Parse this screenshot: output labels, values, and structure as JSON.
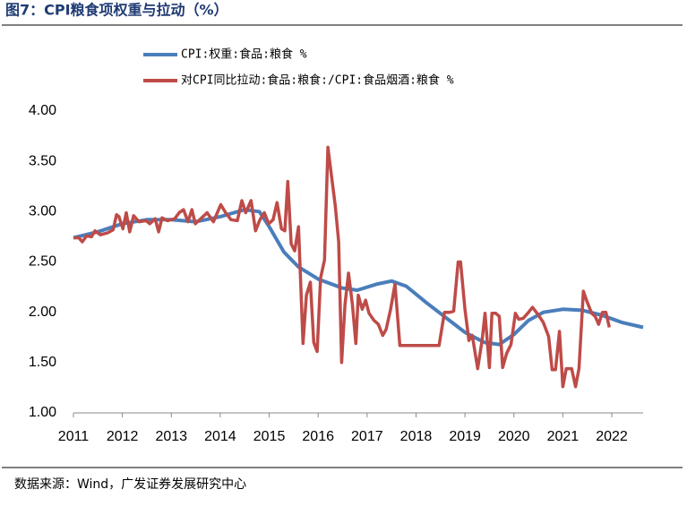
{
  "chart_data": {
    "type": "line",
    "title": "图7：CPI粮食项权重与拉动（%）",
    "source": "数据来源：Wind，广发证券发展研究中心",
    "xlim": [
      2011,
      2022.64
    ],
    "ylim": [
      1,
      4
    ],
    "xticks": [
      2011,
      2012,
      2013,
      2014,
      2015,
      2016,
      2017,
      2018,
      2019,
      2020,
      2021,
      2022
    ],
    "yticks": [
      {
        "value": 1,
        "label": "1.00"
      },
      {
        "value": 1.5,
        "label": "1.50"
      },
      {
        "value": 2,
        "label": "2.00"
      },
      {
        "value": 2.5,
        "label": "2.50"
      },
      {
        "value": 3,
        "label": "3.00"
      },
      {
        "value": 3.5,
        "label": "3.50"
      },
      {
        "value": 4,
        "label": "4.00"
      }
    ],
    "series": [
      {
        "name": "CPI:权重:食品:粮食 %",
        "color": "#4a7ebb",
        "x": [
          2011.0,
          2011.5,
          2012.0,
          2012.5,
          2013.0,
          2013.5,
          2014.0,
          2014.5,
          2014.8,
          2015.0,
          2015.3,
          2015.6,
          2016.0,
          2016.5,
          2016.8,
          2017.2,
          2017.5,
          2017.8,
          2018.2,
          2018.6,
          2019.0,
          2019.4,
          2019.7,
          2020.0,
          2020.3,
          2020.6,
          2021.0,
          2021.4,
          2021.8,
          2022.2,
          2022.64
        ],
        "values": [
          2.74,
          2.8,
          2.88,
          2.92,
          2.92,
          2.9,
          2.95,
          3.02,
          3.0,
          2.85,
          2.6,
          2.45,
          2.33,
          2.24,
          2.22,
          2.28,
          2.31,
          2.26,
          2.1,
          1.95,
          1.8,
          1.7,
          1.68,
          1.78,
          1.92,
          2.0,
          2.03,
          2.02,
          1.97,
          1.9,
          1.85
        ]
      },
      {
        "name": "对CPI同比拉动:食品:粮食:/CPI:食品烟酒:粮食 %",
        "color": "#be4b48",
        "x": [
          2011.0,
          2011.11,
          2011.18,
          2011.27,
          2011.37,
          2011.44,
          2011.55,
          2011.7,
          2011.81,
          2011.88,
          2011.93,
          2012.01,
          2012.08,
          2012.15,
          2012.23,
          2012.34,
          2012.48,
          2012.56,
          2012.67,
          2012.74,
          2012.81,
          2012.92,
          2013.07,
          2013.16,
          2013.25,
          2013.34,
          2013.42,
          2013.49,
          2013.6,
          2013.73,
          2013.86,
          2014.01,
          2014.11,
          2014.22,
          2014.35,
          2014.44,
          2014.52,
          2014.63,
          2014.72,
          2014.81,
          2014.9,
          2014.99,
          2015.08,
          2015.16,
          2015.25,
          2015.32,
          2015.38,
          2015.45,
          2015.52,
          2015.6,
          2015.69,
          2015.76,
          2015.84,
          2015.91,
          2015.98,
          2016.05,
          2016.13,
          2016.2,
          2016.27,
          2016.35,
          2016.42,
          2016.48,
          2016.55,
          2016.62,
          2016.7,
          2016.77,
          2016.82,
          2016.9,
          2016.97,
          2017.04,
          2017.14,
          2017.23,
          2017.32,
          2017.39,
          2017.48,
          2017.57,
          2017.67,
          2017.77,
          2017.92,
          2018.11,
          2018.29,
          2018.47,
          2018.58,
          2018.69,
          2018.77,
          2018.86,
          2018.91,
          2019.0,
          2019.08,
          2019.15,
          2019.26,
          2019.35,
          2019.41,
          2019.5,
          2019.55,
          2019.63,
          2019.7,
          2019.77,
          2019.85,
          2019.94,
          2020.03,
          2020.1,
          2020.19,
          2020.3,
          2020.38,
          2020.49,
          2020.6,
          2020.71,
          2020.78,
          2020.85,
          2020.93,
          2021.0,
          2021.07,
          2021.18,
          2021.26,
          2021.33,
          2021.42,
          2021.49,
          2021.59,
          2021.66,
          2021.73,
          2021.81,
          2021.88,
          2021.95
        ],
        "values": [
          2.74,
          2.74,
          2.7,
          2.76,
          2.75,
          2.81,
          2.77,
          2.79,
          2.82,
          2.97,
          2.95,
          2.83,
          2.99,
          2.8,
          2.96,
          2.9,
          2.91,
          2.88,
          2.93,
          2.8,
          2.94,
          2.91,
          2.93,
          2.99,
          3.02,
          2.9,
          3.02,
          2.88,
          2.93,
          2.99,
          2.9,
          3.07,
          2.99,
          2.92,
          2.91,
          3.11,
          2.99,
          3.11,
          2.81,
          2.92,
          2.99,
          2.88,
          2.92,
          3.09,
          2.83,
          2.81,
          3.3,
          2.68,
          2.61,
          2.85,
          1.69,
          2.17,
          2.3,
          1.7,
          1.61,
          2.34,
          2.52,
          3.64,
          3.37,
          3.06,
          2.7,
          1.5,
          2.08,
          2.39,
          2.08,
          1.69,
          2.17,
          2.03,
          2.12,
          1.99,
          1.92,
          1.88,
          1.77,
          1.83,
          2.03,
          2.28,
          1.67,
          1.67,
          1.67,
          1.67,
          1.67,
          1.67,
          2.0,
          2.0,
          2.01,
          2.5,
          2.5,
          2.03,
          1.72,
          1.77,
          1.44,
          1.72,
          1.99,
          1.45,
          1.99,
          1.99,
          1.96,
          1.45,
          1.59,
          1.68,
          1.99,
          1.93,
          1.94,
          2.0,
          2.05,
          1.98,
          1.9,
          1.76,
          1.43,
          1.43,
          1.81,
          1.26,
          1.44,
          1.44,
          1.26,
          1.44,
          2.21,
          2.11,
          1.99,
          1.96,
          1.88,
          2.0,
          2.0,
          1.85
        ]
      }
    ]
  }
}
